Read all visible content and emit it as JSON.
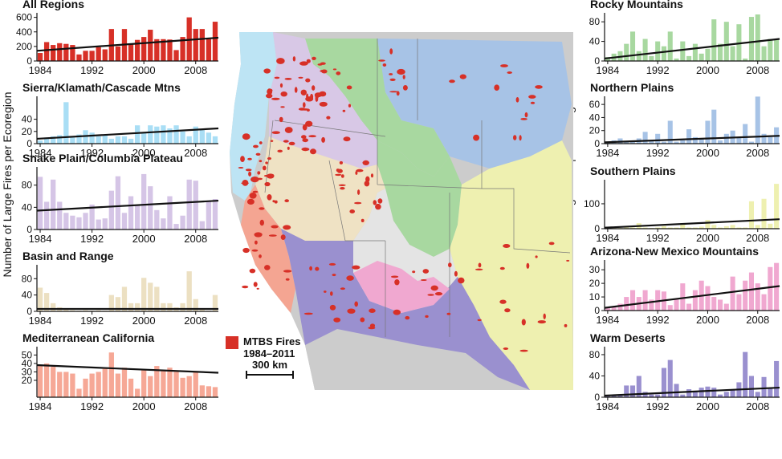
{
  "y_axis_label": "Number of Large Fires per Ecoregion",
  "legend": {
    "fire_label_line1": "MTBS Fires",
    "fire_label_line2": "1984–2011",
    "fire_color": "#d73027",
    "scale_label": "300 km"
  },
  "years": [
    1984,
    1985,
    1986,
    1987,
    1988,
    1989,
    1990,
    1991,
    1992,
    1993,
    1994,
    1995,
    1996,
    1997,
    1998,
    1999,
    2000,
    2001,
    2002,
    2003,
    2004,
    2005,
    2006,
    2007,
    2008,
    2009,
    2010,
    2011
  ],
  "x_tick_labels": [
    "1984",
    "1992",
    "2000",
    "2008"
  ],
  "map_region_colors": {
    "rocky_mountains": "#a8d8a0",
    "northern_plains": "#a7c3e6",
    "southern_plains": "#eef0b0",
    "sierra_cascade": "#bde4f4",
    "snake_columbia": "#d8c8e6",
    "basin_range": "#efe2c4",
    "mediterranean_california": "#f4a592",
    "az_nm_mountains": "#f0a8d0",
    "warm_deserts": "#9a90cf",
    "unclassified": "#e4e4e4",
    "outside": "#cccccc"
  },
  "chart_data": [
    {
      "type": "bar",
      "title": "All Regions",
      "color": "#d73027",
      "ylim": [
        0,
        640
      ],
      "yticks": [
        0,
        200,
        400,
        600
      ],
      "trend": [
        140,
        320
      ],
      "values": [
        110,
        260,
        220,
        245,
        235,
        220,
        90,
        140,
        140,
        190,
        160,
        440,
        200,
        440,
        240,
        290,
        330,
        430,
        300,
        300,
        295,
        150,
        330,
        600,
        440,
        440,
        300,
        540
      ]
    },
    {
      "type": "bar",
      "title": "Sierra/Klamath/Cascade Mtns",
      "color": "#a9def5",
      "ylim": [
        0,
        75
      ],
      "yticks": [
        0,
        20,
        40
      ],
      "trend": [
        8,
        25
      ],
      "values": [
        5,
        10,
        12,
        14,
        68,
        10,
        15,
        22,
        18,
        12,
        15,
        8,
        12,
        12,
        8,
        30,
        18,
        30,
        28,
        30,
        25,
        30,
        20,
        12,
        28,
        22,
        18,
        12
      ]
    },
    {
      "type": "bar",
      "title": "Snake Plain/Columbia Plateau",
      "color": "#d5c5e6",
      "ylim": [
        0,
        110
      ],
      "yticks": [
        0,
        40,
        80
      ],
      "trend": [
        34,
        52
      ],
      "values": [
        95,
        50,
        90,
        50,
        30,
        25,
        22,
        30,
        45,
        18,
        20,
        70,
        96,
        30,
        60,
        45,
        100,
        78,
        35,
        20,
        60,
        10,
        25,
        90,
        88,
        15,
        50,
        55
      ]
    },
    {
      "type": "bar",
      "title": "Basin and Range",
      "color": "#ece0c2",
      "ylim": [
        0,
        110
      ],
      "yticks": [
        0,
        40,
        80
      ],
      "trend": [
        6,
        6
      ],
      "values": [
        58,
        45,
        20,
        10,
        5,
        3,
        2,
        3,
        2,
        3,
        2,
        40,
        35,
        60,
        20,
        20,
        82,
        70,
        60,
        20,
        20,
        10,
        20,
        98,
        30,
        5,
        2,
        40
      ]
    },
    {
      "type": "bar",
      "title": "Mediterranean California",
      "color": "#f6a896",
      "ylim": [
        0,
        58
      ],
      "yticks": [
        20,
        30,
        40,
        50
      ],
      "trend": [
        38,
        29
      ],
      "values": [
        38,
        40,
        36,
        30,
        30,
        28,
        10,
        22,
        28,
        30,
        34,
        53,
        28,
        35,
        22,
        10,
        33,
        25,
        37,
        32,
        35,
        30,
        23,
        25,
        31,
        14,
        13,
        12
      ]
    },
    {
      "type": "bar",
      "title": "Rocky Mountains",
      "color": "#a8d8a0",
      "ylim": [
        0,
        95
      ],
      "yticks": [
        0,
        40,
        80
      ],
      "trend": [
        5,
        45
      ],
      "values": [
        8,
        15,
        20,
        35,
        60,
        20,
        45,
        10,
        40,
        30,
        60,
        5,
        40,
        10,
        35,
        15,
        25,
        85,
        35,
        80,
        30,
        75,
        5,
        90,
        95,
        30,
        45,
        45
      ]
    },
    {
      "type": "bar",
      "title": "Northern Plains",
      "color": "#a7c3e6",
      "ylim": [
        0,
        70
      ],
      "yticks": [
        0,
        20,
        40,
        60
      ],
      "trend": [
        2,
        12
      ],
      "values": [
        3,
        5,
        8,
        3,
        5,
        8,
        18,
        5,
        15,
        3,
        35,
        3,
        5,
        22,
        10,
        8,
        35,
        52,
        5,
        15,
        20,
        10,
        30,
        3,
        72,
        15,
        10,
        25
      ]
    },
    {
      "type": "bar",
      "title": "Southern Plains",
      "color": "#eef0b0",
      "ylim": [
        0,
        190
      ],
      "yticks": [
        0,
        100
      ],
      "trend": [
        4,
        38
      ],
      "values": [
        2,
        5,
        3,
        8,
        5,
        22,
        5,
        3,
        5,
        10,
        5,
        5,
        20,
        5,
        5,
        8,
        35,
        15,
        5,
        10,
        15,
        5,
        5,
        110,
        15,
        120,
        20,
        180
      ]
    },
    {
      "type": "bar",
      "title": "Arizona-New Mexico Mountains",
      "color": "#f0a8d0",
      "ylim": [
        0,
        36
      ],
      "yticks": [
        0,
        10,
        20,
        30
      ],
      "trend": [
        2,
        18
      ],
      "values": [
        2,
        3,
        5,
        10,
        15,
        10,
        15,
        8,
        15,
        14,
        4,
        8,
        20,
        5,
        15,
        22,
        18,
        10,
        8,
        5,
        25,
        12,
        22,
        28,
        20,
        12,
        32,
        35
      ]
    },
    {
      "type": "bar",
      "title": "Warm Deserts",
      "color": "#9a90cf",
      "ylim": [
        0,
        92
      ],
      "yticks": [
        0,
        40,
        80
      ],
      "trend": [
        3,
        18
      ],
      "values": [
        2,
        3,
        5,
        22,
        22,
        40,
        10,
        5,
        5,
        55,
        70,
        25,
        5,
        15,
        10,
        18,
        20,
        18,
        5,
        10,
        15,
        28,
        85,
        40,
        10,
        38,
        18,
        68
      ]
    }
  ]
}
